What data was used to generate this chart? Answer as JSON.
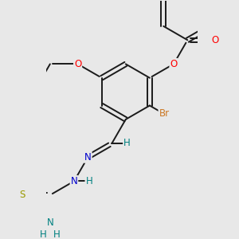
{
  "bg_color": "#e8e8e8",
  "bond_color": "#1a1a1a",
  "lw": 1.4,
  "dbo": 0.018,
  "colors": {
    "O": "#ff0000",
    "Br": "#cc7722",
    "N": "#0000cc",
    "S": "#999900",
    "H": "#008080",
    "C": "#1a1a1a"
  },
  "figsize": [
    3.0,
    3.0
  ],
  "dpi": 100
}
